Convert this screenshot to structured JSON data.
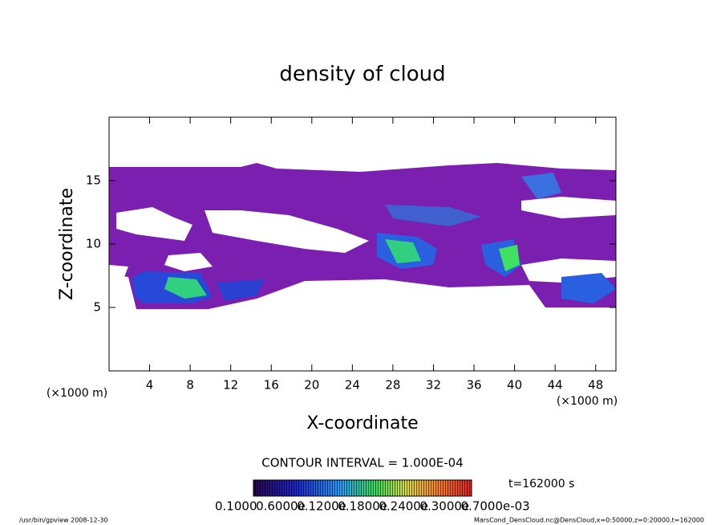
{
  "chart_data": {
    "type": "contour",
    "title": "density of cloud",
    "xlabel": "X-coordinate",
    "ylabel": "Z-coordinate",
    "xunit": "(×1000 m)",
    "xlim": [
      0,
      50
    ],
    "ylim": [
      0,
      20
    ],
    "xticks": [
      4,
      8,
      12,
      16,
      20,
      24,
      28,
      32,
      36,
      40,
      44,
      48
    ],
    "yticks": [
      5,
      10,
      15
    ],
    "contour_interval": "CONTOUR INTERVAL = 1.000E-04",
    "time": "t=162000 s",
    "colorbar_labels": [
      "0.1000",
      "0.6000e",
      "0.1200e",
      "0.1800e",
      "0.2400e",
      "0.3000e",
      "0.7000e-03"
    ],
    "footer_left": "/usr/bin/gpview  2008-12-30",
    "footer_right": "MarsCond_DensCloud.nc@DensCloud,x=0:50000,z=0:20000,t=162000"
  }
}
